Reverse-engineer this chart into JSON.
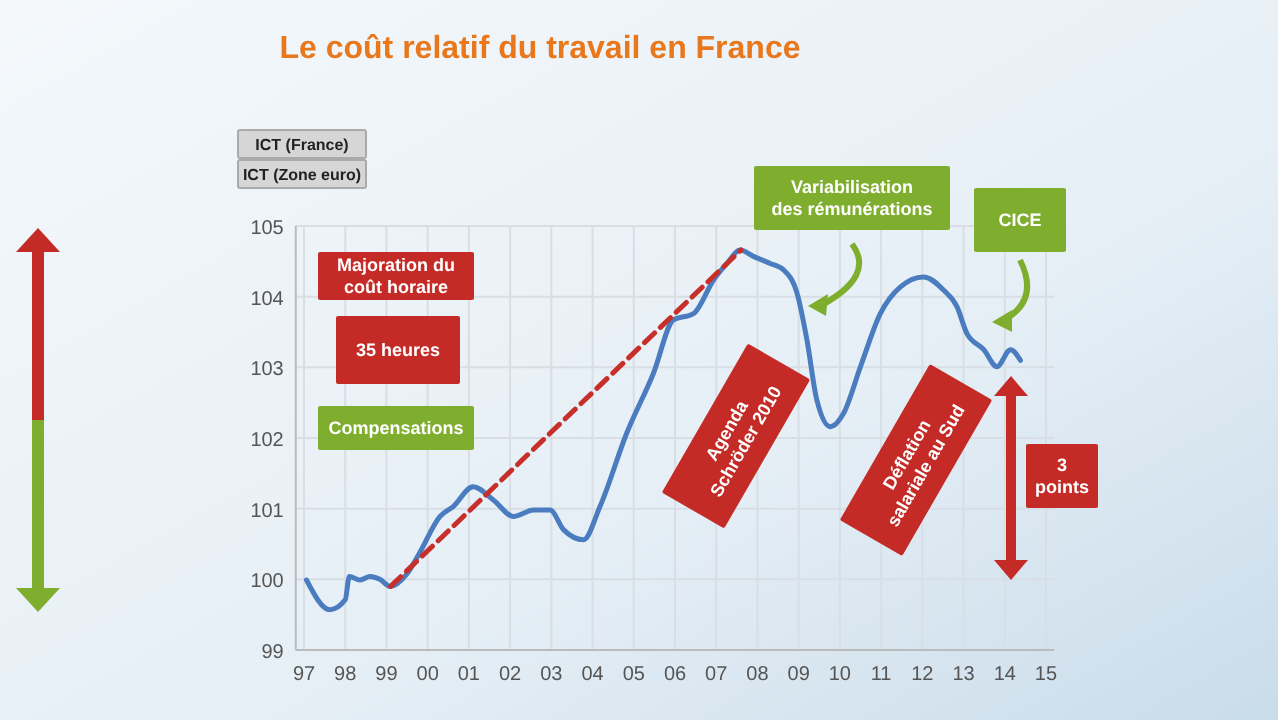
{
  "chart_data": {
    "type": "line",
    "title": "Le coût relatif du travail en France",
    "xlim": [
      1996.8,
      2015.2
    ],
    "xticks": [
      {
        "value": 1997,
        "label": "97"
      },
      {
        "value": 1998,
        "label": "98"
      },
      {
        "value": 1999,
        "label": "99"
      },
      {
        "value": 2000,
        "label": "00"
      },
      {
        "value": 2001,
        "label": "01"
      },
      {
        "value": 2002,
        "label": "02"
      },
      {
        "value": 2003,
        "label": "03"
      },
      {
        "value": 2004,
        "label": "04"
      },
      {
        "value": 2005,
        "label": "05"
      },
      {
        "value": 2006,
        "label": "06"
      },
      {
        "value": 2007,
        "label": "07"
      },
      {
        "value": 2008,
        "label": "08"
      },
      {
        "value": 2009,
        "label": "09"
      },
      {
        "value": 2010,
        "label": "10"
      },
      {
        "value": 2011,
        "label": "11"
      },
      {
        "value": 2012,
        "label": "12"
      },
      {
        "value": 2013,
        "label": "13"
      },
      {
        "value": 2014,
        "label": "14"
      },
      {
        "value": 2015,
        "label": "15"
      }
    ],
    "ylim": [
      99,
      105
    ],
    "yticks": [
      99,
      100,
      101,
      102,
      103,
      104,
      105
    ],
    "grid": true,
    "marker": "none",
    "series": [
      {
        "color": "#4a7cbf",
        "line_style": "solid",
        "x": [
          1997.06,
          1997.63,
          1998.0,
          1998.1,
          1998.36,
          1998.6,
          1998.84,
          1999.09,
          1999.5,
          1999.8,
          2000.3,
          2000.62,
          2001.1,
          2001.6,
          2002.08,
          2002.57,
          2002.97,
          2003.3,
          2003.78,
          2004.18,
          2004.83,
          2005.48,
          2005.96,
          2006.45,
          2006.94,
          2007.26,
          2007.58,
          2007.9,
          2008.31,
          2008.63,
          2008.96,
          2009.2,
          2009.44,
          2009.77,
          2010.09,
          2010.5,
          2010.98,
          2011.47,
          2012.03,
          2012.52,
          2012.84,
          2013.08,
          2013.49,
          2013.81,
          2014.14,
          2014.38
        ],
        "values": [
          99.99,
          99.57,
          99.71,
          100.04,
          99.99,
          100.04,
          100.0,
          99.9,
          100.08,
          100.37,
          100.89,
          101.03,
          101.31,
          101.12,
          100.89,
          100.98,
          100.98,
          100.7,
          100.56,
          101.03,
          102.07,
          102.92,
          103.67,
          103.76,
          104.24,
          104.47,
          104.66,
          104.57,
          104.47,
          104.38,
          104.05,
          103.39,
          102.54,
          102.16,
          102.35,
          103.01,
          103.76,
          104.14,
          104.28,
          104.09,
          103.86,
          103.48,
          103.25,
          103.01,
          103.25,
          103.1
        ]
      },
      {
        "color": "#c62f2a",
        "line_style": "dashed",
        "x": [
          1999.1,
          2007.6
        ],
        "values": [
          99.9,
          104.66
        ]
      }
    ],
    "annotations": [
      "ICT (France)",
      "ICT (Zone euro)",
      "Majoration du coût horaire",
      "35 heures",
      "Compensations",
      "Agenda Schröder 2010",
      "Variabilisation des rémunérations",
      "CICE",
      "Déflation salariale au Sud",
      "3 points"
    ]
  }
}
